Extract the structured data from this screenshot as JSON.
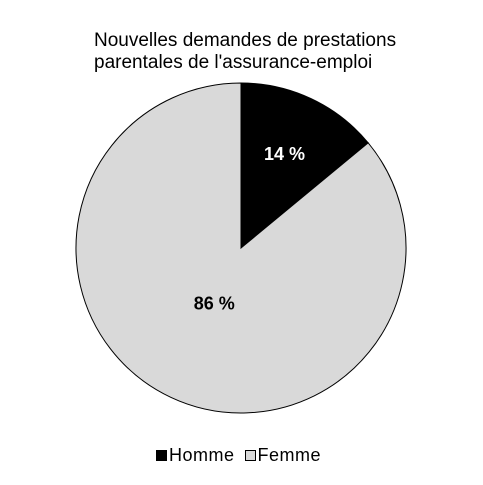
{
  "chart_data": {
    "type": "pie",
    "title_lines": [
      "Nouvelles demandes de prestations",
      "parentales de l'assurance-emploi"
    ],
    "categories": [
      "Homme",
      "Femme"
    ],
    "values": [
      14,
      86
    ],
    "labels": [
      "14 %",
      "86 %"
    ],
    "colors": [
      "#000000",
      "#d9d9d9"
    ],
    "legend_position": "bottom"
  }
}
